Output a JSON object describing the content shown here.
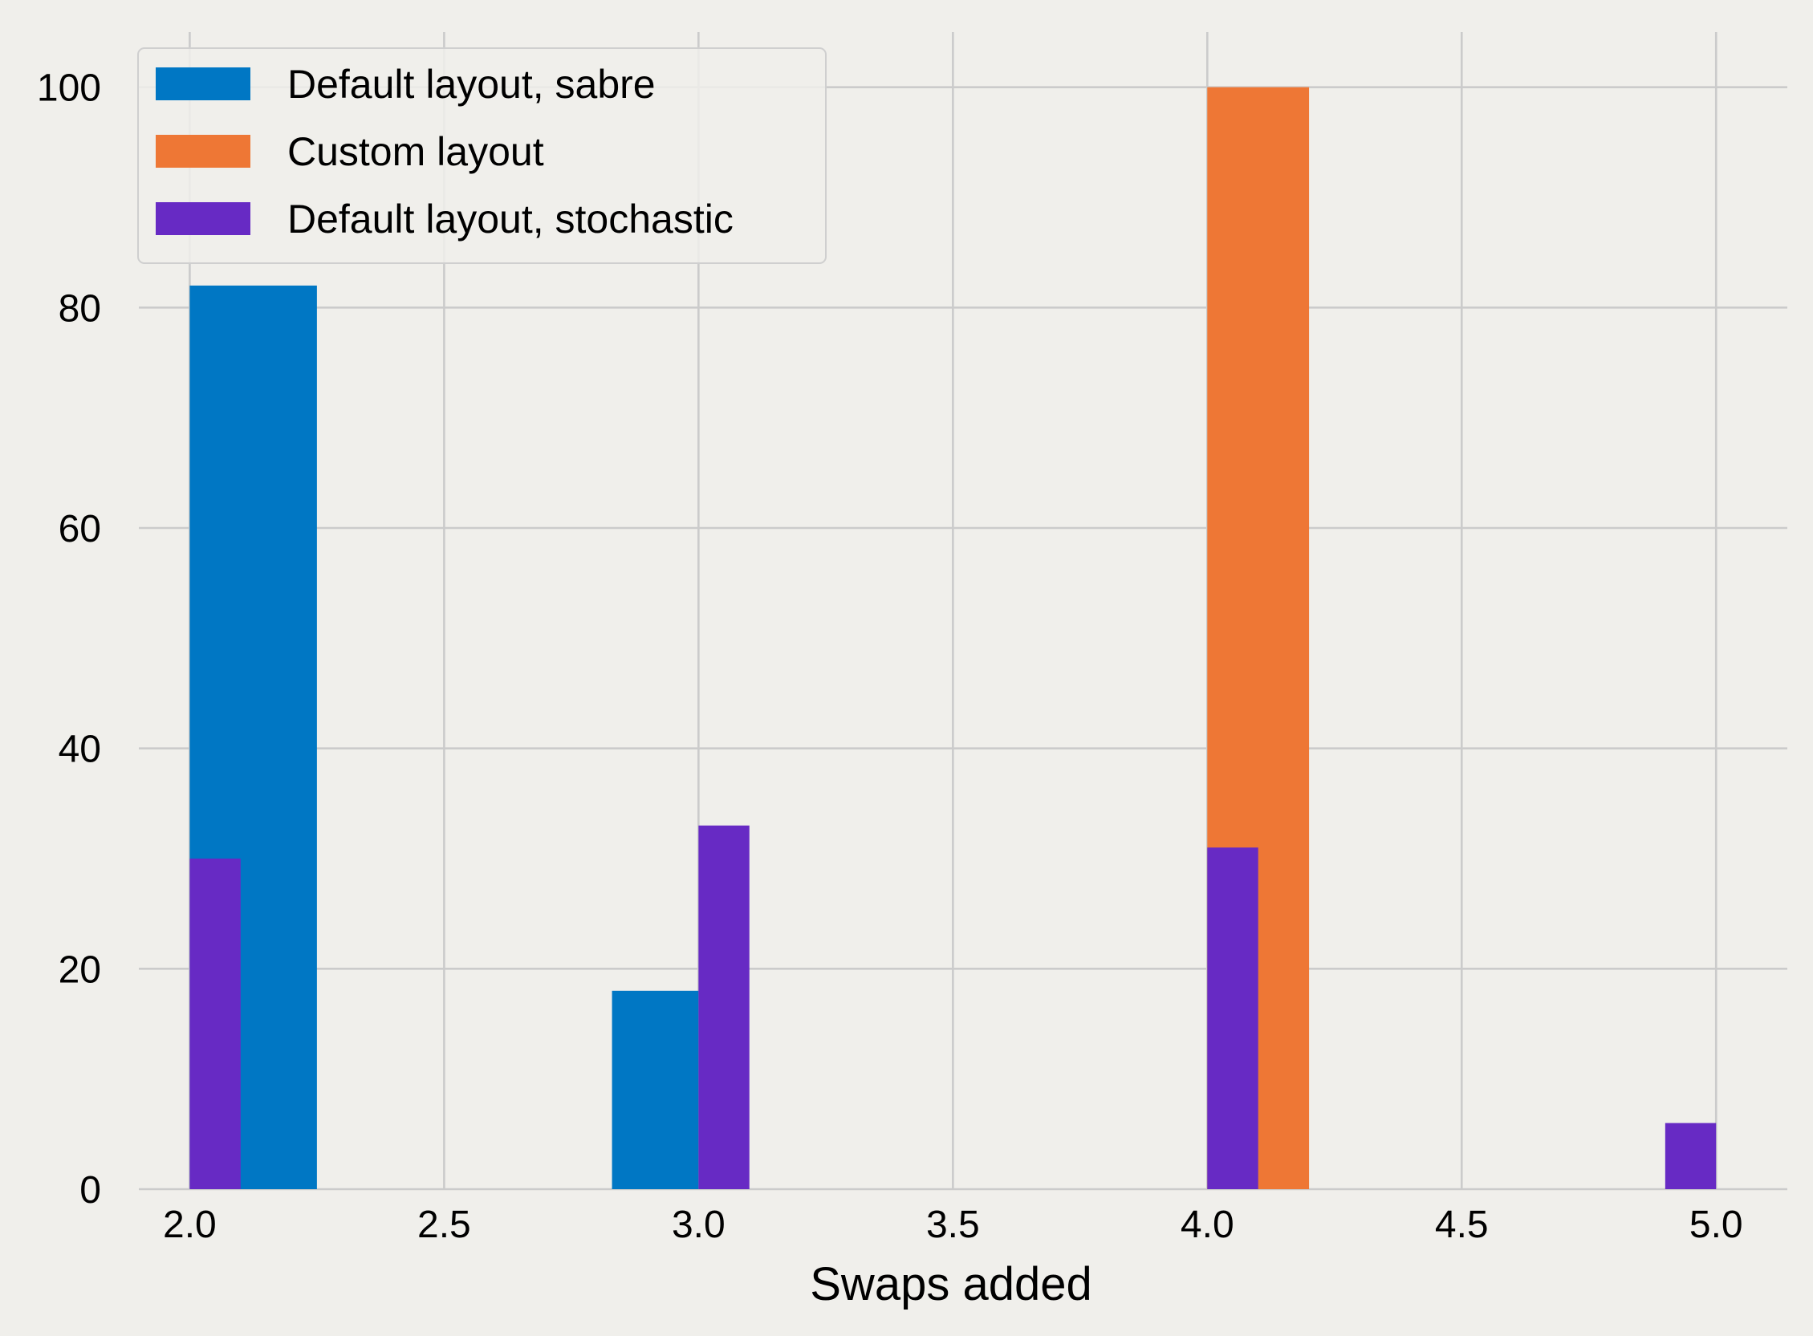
{
  "chart_data": {
    "type": "bar",
    "xlabel": "Swaps added",
    "ylabel": "",
    "xlim": [
      1.9,
      5.14
    ],
    "ylim": [
      0,
      105
    ],
    "grid": true,
    "legend_position": "top-left",
    "x_ticks": [
      {
        "value": 2.0,
        "label": "2.0"
      },
      {
        "value": 2.5,
        "label": "2.5"
      },
      {
        "value": 3.0,
        "label": "3.0"
      },
      {
        "value": 3.5,
        "label": "3.5"
      },
      {
        "value": 4.0,
        "label": "4.0"
      },
      {
        "value": 4.5,
        "label": "4.5"
      },
      {
        "value": 5.0,
        "label": "5.0"
      }
    ],
    "y_ticks": [
      {
        "value": 0,
        "label": "0"
      },
      {
        "value": 20,
        "label": "20"
      },
      {
        "value": 40,
        "label": "40"
      },
      {
        "value": 60,
        "label": "60"
      },
      {
        "value": 80,
        "label": "80"
      },
      {
        "value": 100,
        "label": "100"
      }
    ],
    "series": [
      {
        "name": "Default layout, sabre",
        "color": "#0077c4",
        "bars": [
          {
            "x0": 2.0,
            "x1": 2.25,
            "value": 82
          },
          {
            "x0": 2.83,
            "x1": 3.0,
            "value": 18
          }
        ]
      },
      {
        "name": "Custom layout",
        "color": "#ee7735",
        "bars": [
          {
            "x0": 4.0,
            "x1": 4.2,
            "value": 100
          }
        ]
      },
      {
        "name": "Default layout, stochastic",
        "color": "#672ac4",
        "bars": [
          {
            "x0": 2.0,
            "x1": 2.1,
            "value": 30
          },
          {
            "x0": 3.0,
            "x1": 3.1,
            "value": 33
          },
          {
            "x0": 4.0,
            "x1": 4.1,
            "value": 31
          },
          {
            "x0": 4.9,
            "x1": 5.0,
            "value": 6
          }
        ]
      }
    ]
  }
}
